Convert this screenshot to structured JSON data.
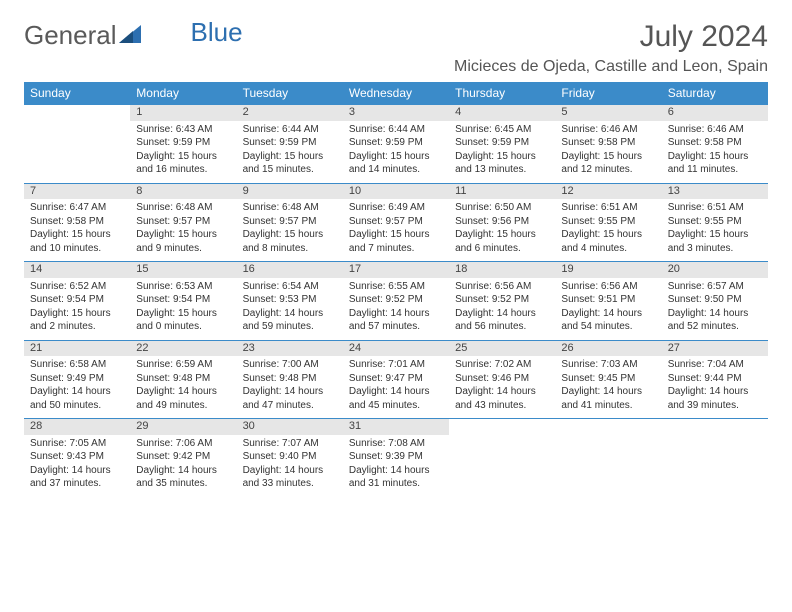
{
  "brand": {
    "word1": "General",
    "word2": "Blue"
  },
  "title": "July 2024",
  "location": "Micieces de Ojeda, Castille and Leon, Spain",
  "colors": {
    "header_bg": "#3b8bc9",
    "daynum_bg": "#e6e6e6",
    "rule": "#3b8bc9"
  },
  "weekdays": [
    "Sunday",
    "Monday",
    "Tuesday",
    "Wednesday",
    "Thursday",
    "Friday",
    "Saturday"
  ],
  "weeks": [
    [
      null,
      {
        "n": "1",
        "sr": "Sunrise: 6:43 AM",
        "ss": "Sunset: 9:59 PM",
        "d1": "Daylight: 15 hours",
        "d2": "and 16 minutes."
      },
      {
        "n": "2",
        "sr": "Sunrise: 6:44 AM",
        "ss": "Sunset: 9:59 PM",
        "d1": "Daylight: 15 hours",
        "d2": "and 15 minutes."
      },
      {
        "n": "3",
        "sr": "Sunrise: 6:44 AM",
        "ss": "Sunset: 9:59 PM",
        "d1": "Daylight: 15 hours",
        "d2": "and 14 minutes."
      },
      {
        "n": "4",
        "sr": "Sunrise: 6:45 AM",
        "ss": "Sunset: 9:59 PM",
        "d1": "Daylight: 15 hours",
        "d2": "and 13 minutes."
      },
      {
        "n": "5",
        "sr": "Sunrise: 6:46 AM",
        "ss": "Sunset: 9:58 PM",
        "d1": "Daylight: 15 hours",
        "d2": "and 12 minutes."
      },
      {
        "n": "6",
        "sr": "Sunrise: 6:46 AM",
        "ss": "Sunset: 9:58 PM",
        "d1": "Daylight: 15 hours",
        "d2": "and 11 minutes."
      }
    ],
    [
      {
        "n": "7",
        "sr": "Sunrise: 6:47 AM",
        "ss": "Sunset: 9:58 PM",
        "d1": "Daylight: 15 hours",
        "d2": "and 10 minutes."
      },
      {
        "n": "8",
        "sr": "Sunrise: 6:48 AM",
        "ss": "Sunset: 9:57 PM",
        "d1": "Daylight: 15 hours",
        "d2": "and 9 minutes."
      },
      {
        "n": "9",
        "sr": "Sunrise: 6:48 AM",
        "ss": "Sunset: 9:57 PM",
        "d1": "Daylight: 15 hours",
        "d2": "and 8 minutes."
      },
      {
        "n": "10",
        "sr": "Sunrise: 6:49 AM",
        "ss": "Sunset: 9:57 PM",
        "d1": "Daylight: 15 hours",
        "d2": "and 7 minutes."
      },
      {
        "n": "11",
        "sr": "Sunrise: 6:50 AM",
        "ss": "Sunset: 9:56 PM",
        "d1": "Daylight: 15 hours",
        "d2": "and 6 minutes."
      },
      {
        "n": "12",
        "sr": "Sunrise: 6:51 AM",
        "ss": "Sunset: 9:55 PM",
        "d1": "Daylight: 15 hours",
        "d2": "and 4 minutes."
      },
      {
        "n": "13",
        "sr": "Sunrise: 6:51 AM",
        "ss": "Sunset: 9:55 PM",
        "d1": "Daylight: 15 hours",
        "d2": "and 3 minutes."
      }
    ],
    [
      {
        "n": "14",
        "sr": "Sunrise: 6:52 AM",
        "ss": "Sunset: 9:54 PM",
        "d1": "Daylight: 15 hours",
        "d2": "and 2 minutes."
      },
      {
        "n": "15",
        "sr": "Sunrise: 6:53 AM",
        "ss": "Sunset: 9:54 PM",
        "d1": "Daylight: 15 hours",
        "d2": "and 0 minutes."
      },
      {
        "n": "16",
        "sr": "Sunrise: 6:54 AM",
        "ss": "Sunset: 9:53 PM",
        "d1": "Daylight: 14 hours",
        "d2": "and 59 minutes."
      },
      {
        "n": "17",
        "sr": "Sunrise: 6:55 AM",
        "ss": "Sunset: 9:52 PM",
        "d1": "Daylight: 14 hours",
        "d2": "and 57 minutes."
      },
      {
        "n": "18",
        "sr": "Sunrise: 6:56 AM",
        "ss": "Sunset: 9:52 PM",
        "d1": "Daylight: 14 hours",
        "d2": "and 56 minutes."
      },
      {
        "n": "19",
        "sr": "Sunrise: 6:56 AM",
        "ss": "Sunset: 9:51 PM",
        "d1": "Daylight: 14 hours",
        "d2": "and 54 minutes."
      },
      {
        "n": "20",
        "sr": "Sunrise: 6:57 AM",
        "ss": "Sunset: 9:50 PM",
        "d1": "Daylight: 14 hours",
        "d2": "and 52 minutes."
      }
    ],
    [
      {
        "n": "21",
        "sr": "Sunrise: 6:58 AM",
        "ss": "Sunset: 9:49 PM",
        "d1": "Daylight: 14 hours",
        "d2": "and 50 minutes."
      },
      {
        "n": "22",
        "sr": "Sunrise: 6:59 AM",
        "ss": "Sunset: 9:48 PM",
        "d1": "Daylight: 14 hours",
        "d2": "and 49 minutes."
      },
      {
        "n": "23",
        "sr": "Sunrise: 7:00 AM",
        "ss": "Sunset: 9:48 PM",
        "d1": "Daylight: 14 hours",
        "d2": "and 47 minutes."
      },
      {
        "n": "24",
        "sr": "Sunrise: 7:01 AM",
        "ss": "Sunset: 9:47 PM",
        "d1": "Daylight: 14 hours",
        "d2": "and 45 minutes."
      },
      {
        "n": "25",
        "sr": "Sunrise: 7:02 AM",
        "ss": "Sunset: 9:46 PM",
        "d1": "Daylight: 14 hours",
        "d2": "and 43 minutes."
      },
      {
        "n": "26",
        "sr": "Sunrise: 7:03 AM",
        "ss": "Sunset: 9:45 PM",
        "d1": "Daylight: 14 hours",
        "d2": "and 41 minutes."
      },
      {
        "n": "27",
        "sr": "Sunrise: 7:04 AM",
        "ss": "Sunset: 9:44 PM",
        "d1": "Daylight: 14 hours",
        "d2": "and 39 minutes."
      }
    ],
    [
      {
        "n": "28",
        "sr": "Sunrise: 7:05 AM",
        "ss": "Sunset: 9:43 PM",
        "d1": "Daylight: 14 hours",
        "d2": "and 37 minutes."
      },
      {
        "n": "29",
        "sr": "Sunrise: 7:06 AM",
        "ss": "Sunset: 9:42 PM",
        "d1": "Daylight: 14 hours",
        "d2": "and 35 minutes."
      },
      {
        "n": "30",
        "sr": "Sunrise: 7:07 AM",
        "ss": "Sunset: 9:40 PM",
        "d1": "Daylight: 14 hours",
        "d2": "and 33 minutes."
      },
      {
        "n": "31",
        "sr": "Sunrise: 7:08 AM",
        "ss": "Sunset: 9:39 PM",
        "d1": "Daylight: 14 hours",
        "d2": "and 31 minutes."
      },
      null,
      null,
      null
    ]
  ]
}
